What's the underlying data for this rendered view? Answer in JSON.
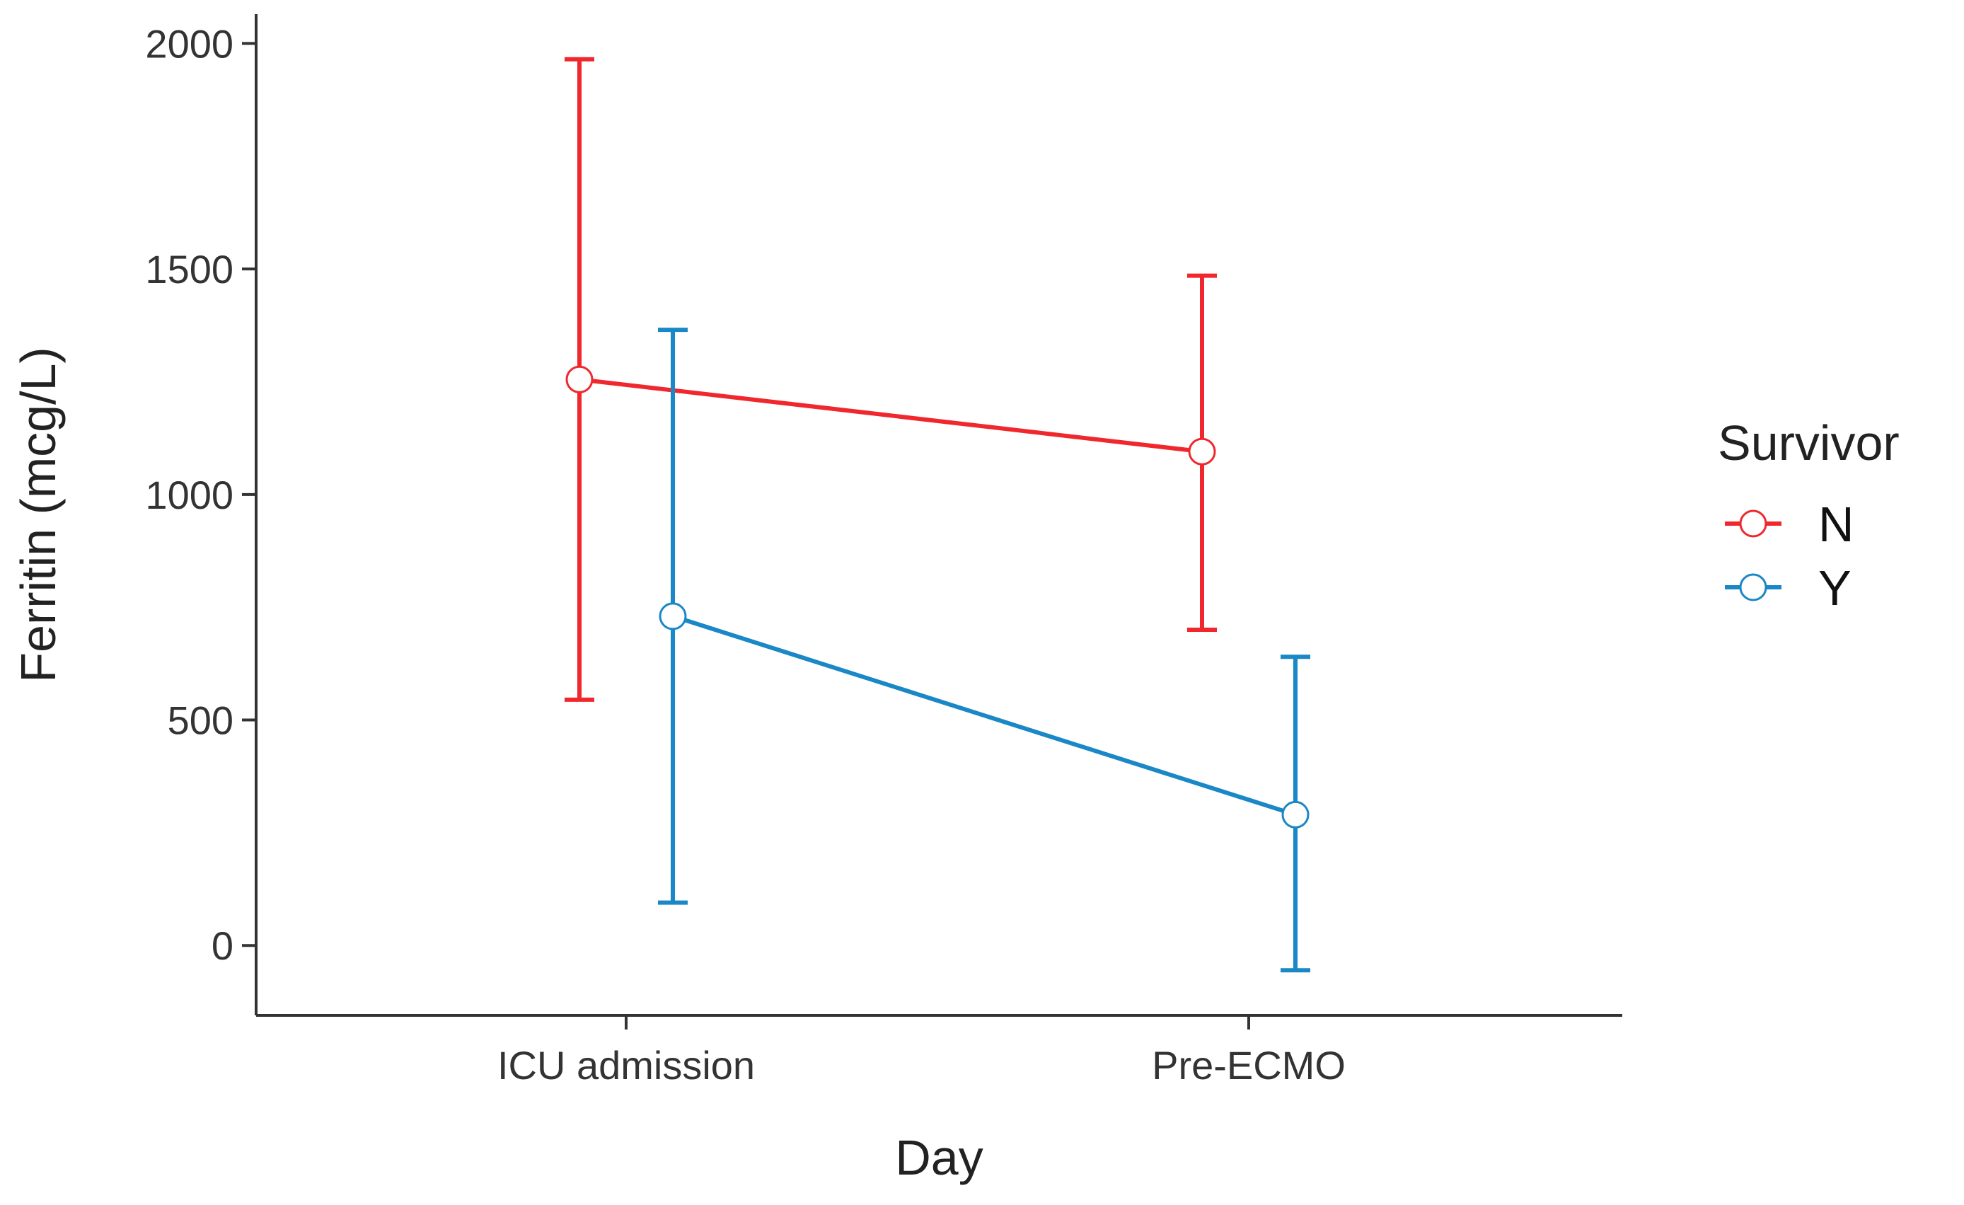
{
  "chart_data": {
    "type": "line",
    "title": "",
    "xlabel": "Day",
    "ylabel": "Ferritin (mcg/L)",
    "categories": [
      "ICU admission",
      "Pre-ECMO"
    ],
    "yticks": [
      0,
      500,
      1000,
      1500,
      2000
    ],
    "ytick_labels": [
      "0",
      "500",
      "1000",
      "1500",
      "2000"
    ],
    "ylim": [
      -155,
      2065
    ],
    "legend_title": "Survivor",
    "legend_position": "right",
    "series": [
      {
        "name": "N",
        "color": "#f0282d",
        "values": [
          1255,
          1095
        ],
        "lower": [
          545,
          700
        ],
        "upper": [
          1965,
          1485
        ],
        "offset": "left"
      },
      {
        "name": "Y",
        "color": "#1a87c6",
        "values": [
          730,
          290
        ],
        "lower": [
          95,
          -55
        ],
        "upper": [
          1365,
          640
        ],
        "offset": "right"
      }
    ]
  }
}
